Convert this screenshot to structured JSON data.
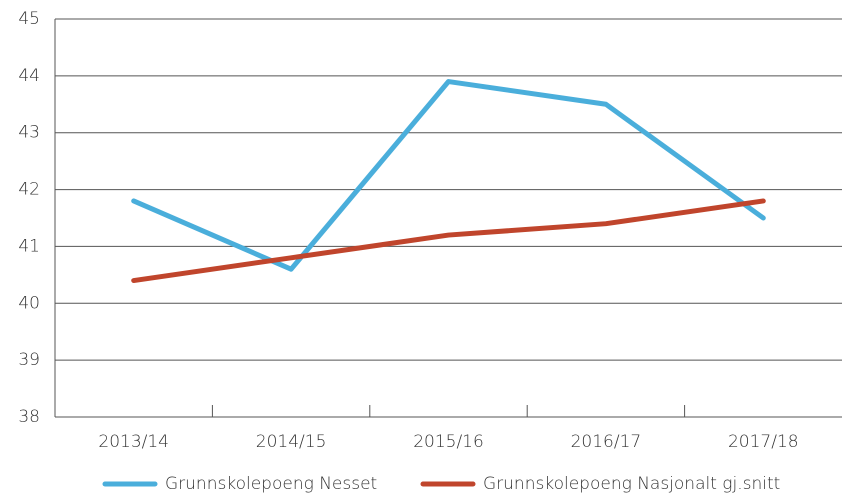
{
  "chart_data": {
    "type": "line",
    "categories": [
      "2013/14",
      "2014/15",
      "2015/16",
      "2016/17",
      "2017/18"
    ],
    "series": [
      {
        "name": "Grunnskolepoeng Nesset",
        "color": "#4aaedb",
        "values": [
          41.8,
          40.6,
          43.9,
          43.5,
          41.5
        ]
      },
      {
        "name": "Grunnskolepoeng Nasjonalt gj.snitt",
        "color": "#c0452c",
        "values": [
          40.4,
          40.8,
          41.2,
          41.4,
          41.8
        ]
      }
    ],
    "ylim": [
      38,
      45
    ],
    "yticks": [
      38,
      39,
      40,
      41,
      42,
      43,
      44,
      45
    ],
    "grid": true
  }
}
